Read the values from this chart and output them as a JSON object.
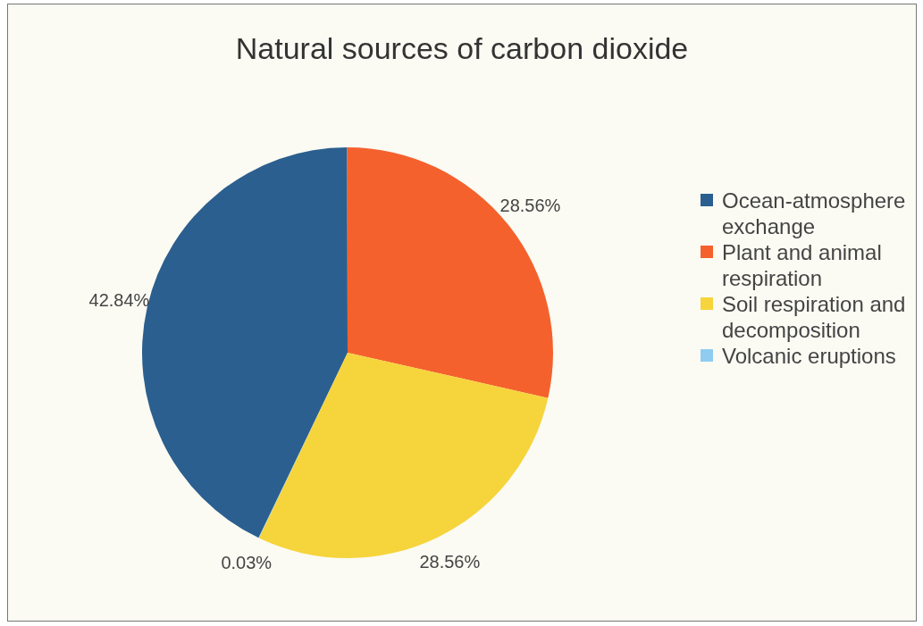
{
  "chart_data": {
    "type": "pie",
    "title": "Natural sources of carbon dioxide",
    "categories": [
      "Ocean-atmosphere exchange",
      "Plant and animal respiration",
      "Soil respiration and decomposition",
      "Volcanic eruptions"
    ],
    "values": [
      42.84,
      28.56,
      28.56,
      0.03
    ],
    "colors": [
      "#2b5f8f",
      "#f5612d",
      "#f6d43c",
      "#90ccf2"
    ],
    "value_labels": [
      "42.84%",
      "28.56%",
      "28.56%",
      "0.03%"
    ],
    "legend": "right"
  }
}
